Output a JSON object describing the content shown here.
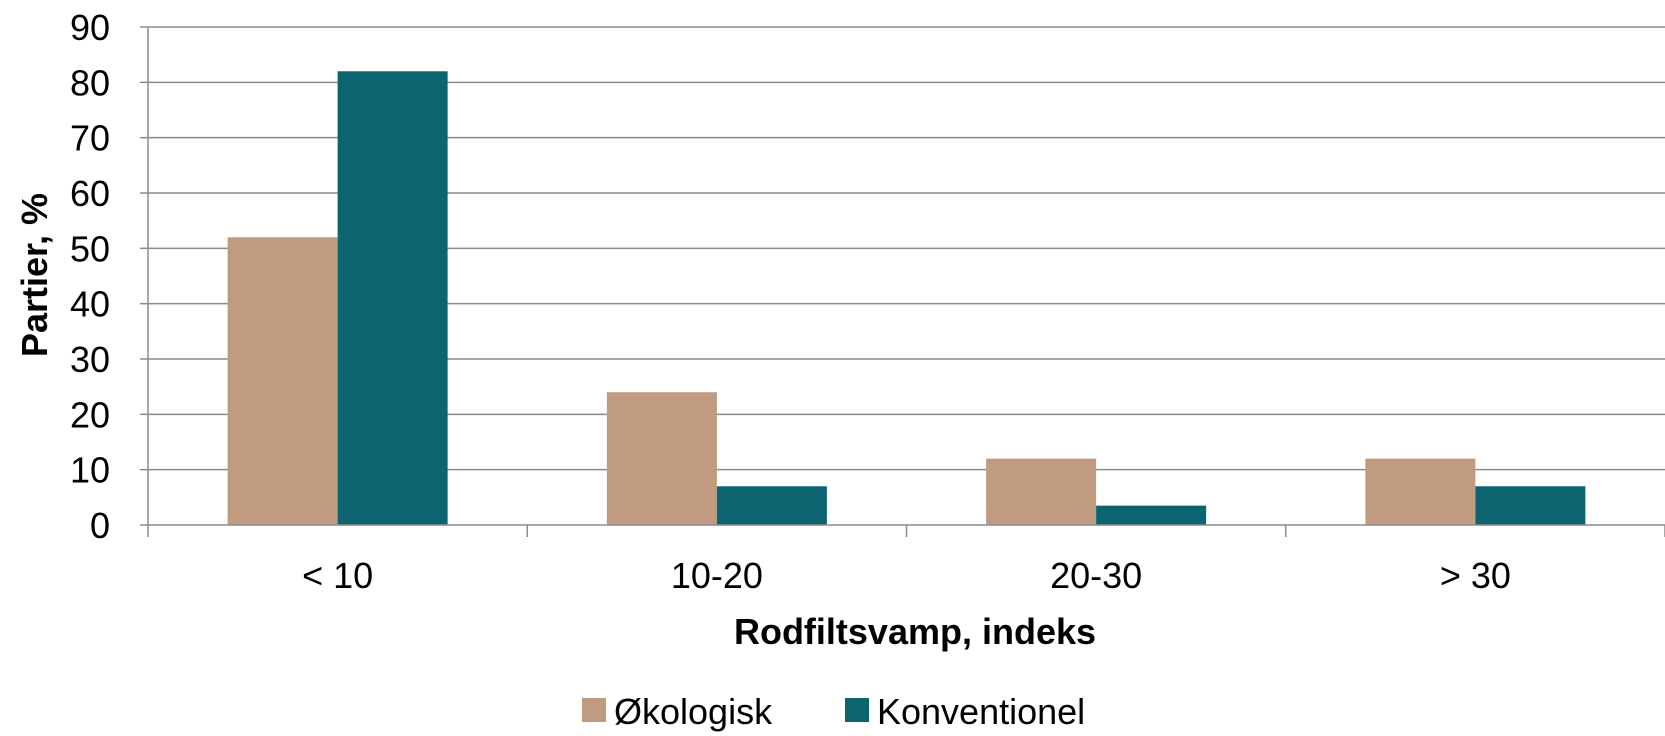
{
  "chart_data": {
    "type": "bar",
    "categories": [
      "< 10",
      "10-20",
      "20-30",
      "> 30"
    ],
    "series": [
      {
        "name": "Økologisk",
        "values": [
          52,
          24,
          12,
          12
        ],
        "color": "#c09b80"
      },
      {
        "name": "Konventionel",
        "values": [
          82,
          7,
          3.5,
          7
        ],
        "color": "#0b6470"
      }
    ],
    "xlabel": "Rodfiltsvamp, indeks",
    "ylabel": "Partier, %",
    "ylim": [
      0,
      90
    ],
    "yticks": [
      "0",
      "10",
      "20",
      "30",
      "40",
      "50",
      "60",
      "70",
      "80",
      "90"
    ],
    "grid": true,
    "legend_position": "bottom"
  }
}
